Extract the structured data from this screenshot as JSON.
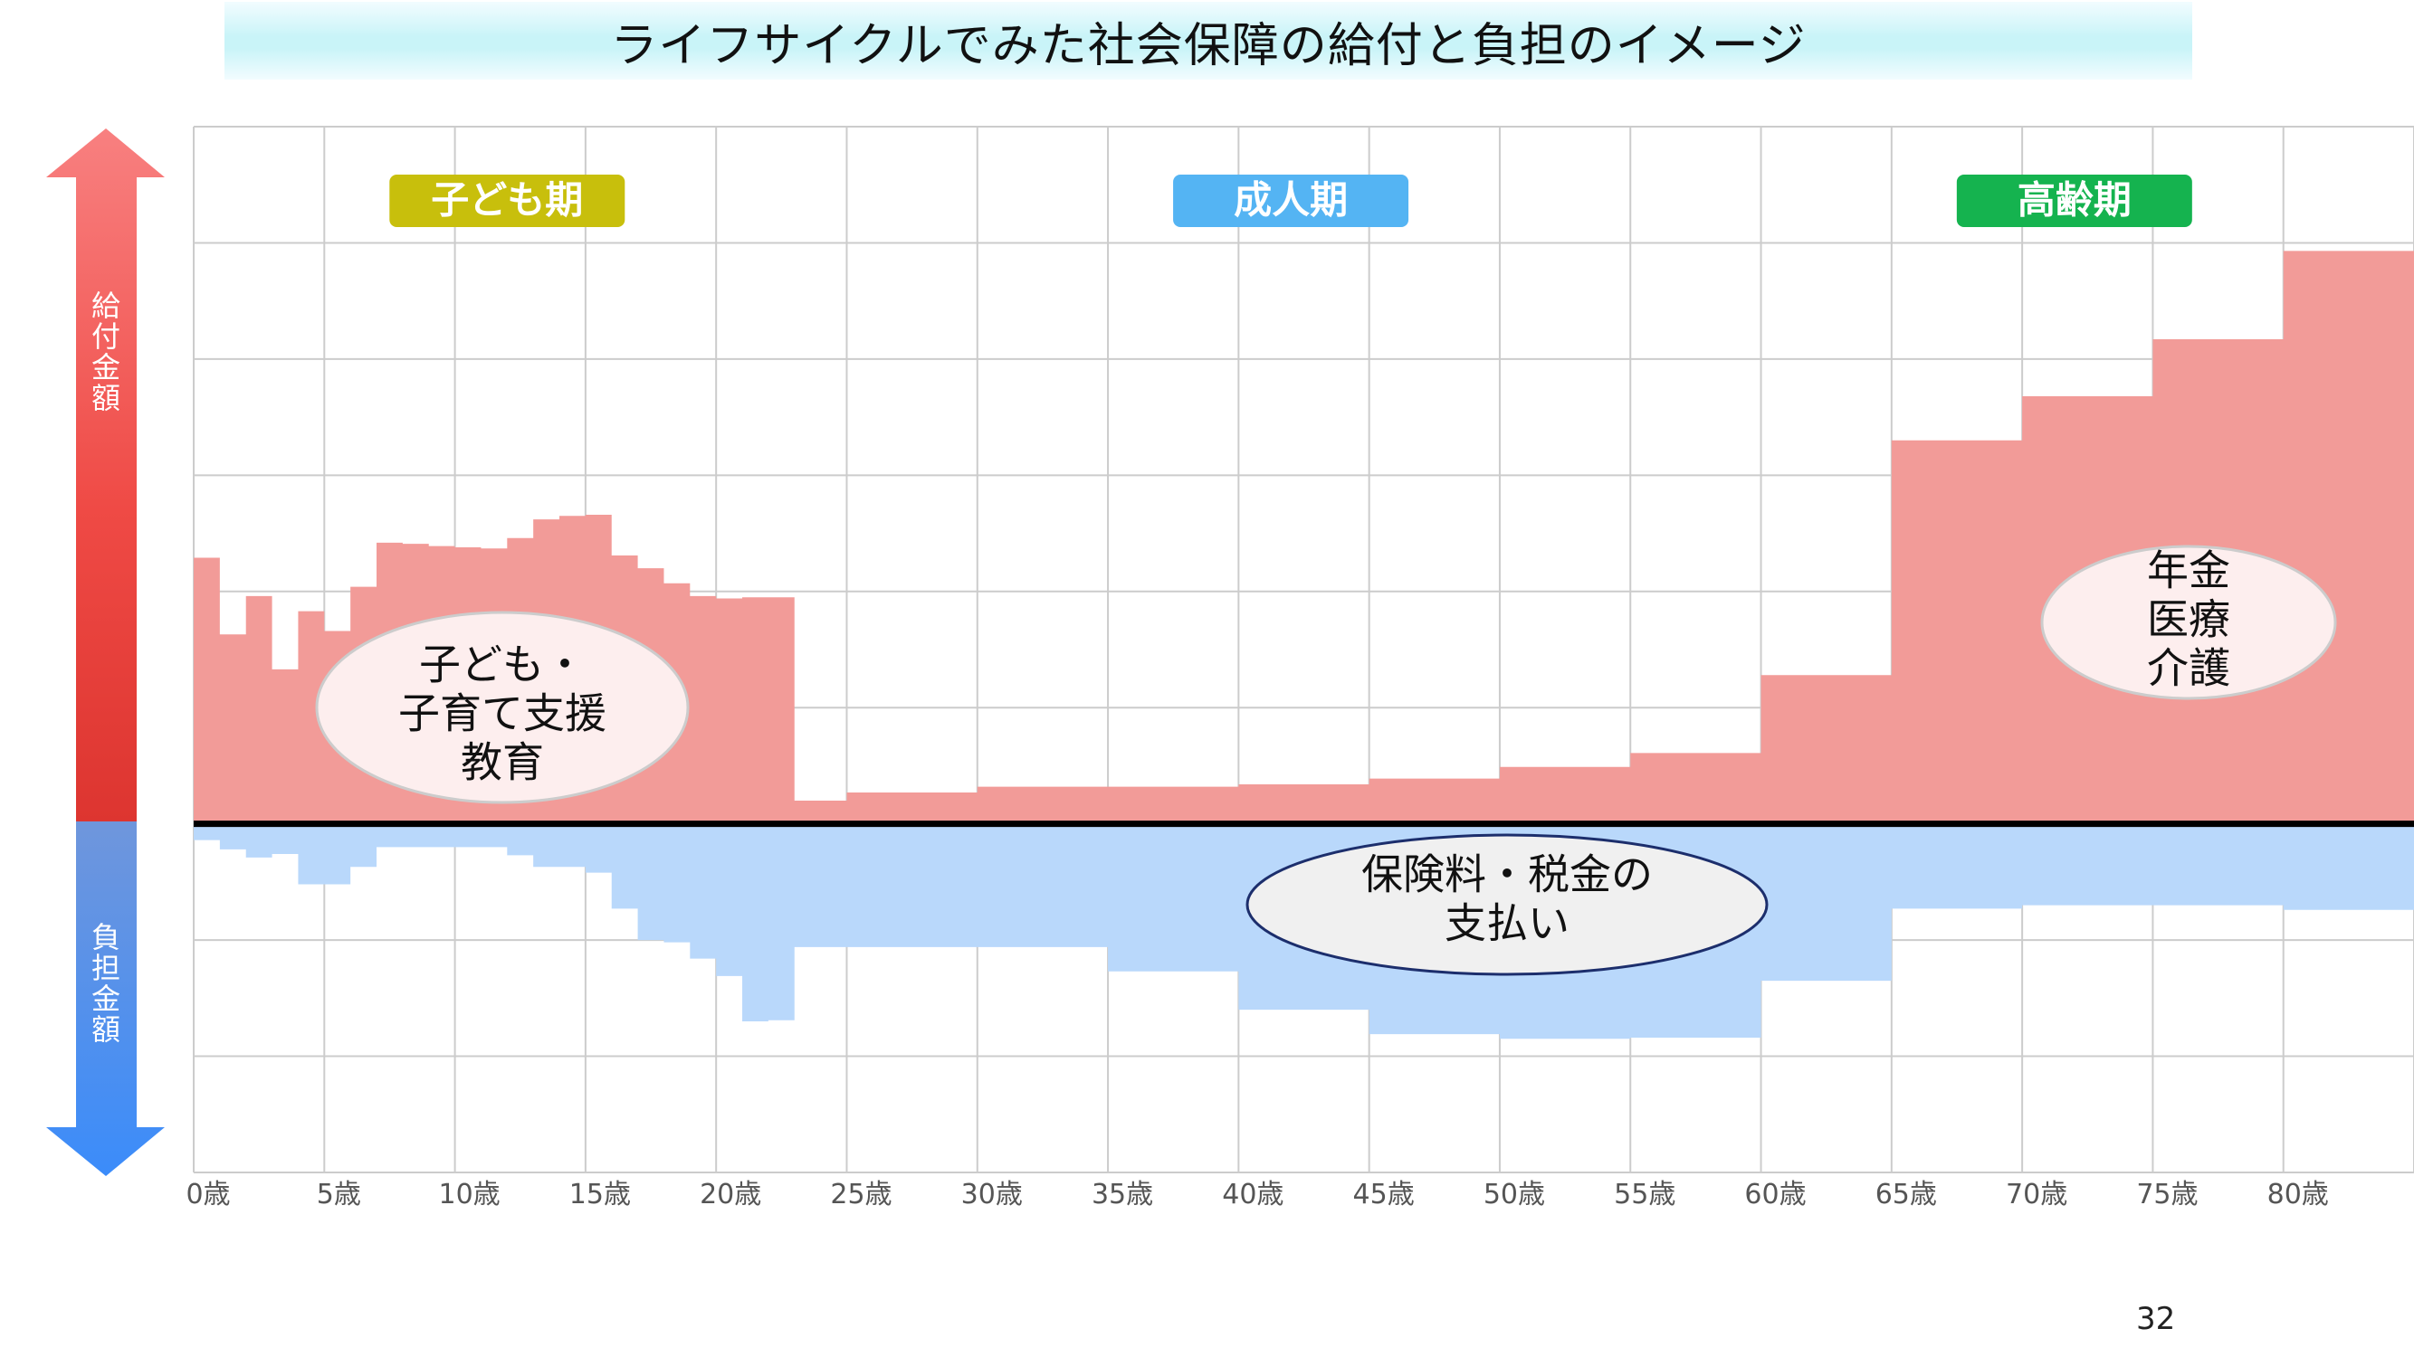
{
  "title": "ライフサイクルでみた社会保障の給付と負担のイメージ",
  "page_number": "32",
  "axis": {
    "benefit_label": [
      "給",
      "付",
      "金",
      "額"
    ],
    "burden_label": [
      "負",
      "担",
      "金",
      "額"
    ]
  },
  "periods": [
    {
      "label": "子ども期",
      "color": "#c8bf0c",
      "age_center": 12
    },
    {
      "label": "成人期",
      "color": "#54b4f3",
      "age_center": 42
    },
    {
      "label": "高齢期",
      "color": "#15b34f",
      "age_center": 72
    }
  ],
  "bubbles": {
    "children": {
      "lines": [
        "子ども・",
        "子育て支援",
        "教育"
      ]
    },
    "elderly": {
      "lines": [
        "年金",
        "医療",
        "介護"
      ]
    },
    "burden": {
      "lines": [
        "保険料・税金の",
        "支払い"
      ]
    }
  },
  "colors": {
    "benefit_fill": "#f29b98",
    "burden_fill": "#b9d8fb",
    "grid": "#cccccc",
    "axis_line": "#000000",
    "arrow_top": "#f77777",
    "arrow_mid": "#e8403b",
    "arrow_bottom_top": "#6d9de6",
    "arrow_bottom": "#3a85f2"
  },
  "chart_data": {
    "type": "area",
    "x_tick_labels": [
      "0歳",
      "5歳",
      "10歳",
      "15歳",
      "20歳",
      "25歳",
      "30歳",
      "35歳",
      "40歳",
      "45歳",
      "50歳",
      "55歳",
      "60歳",
      "65歳",
      "70歳",
      "75歳",
      "80歳"
    ],
    "xlim": [
      0,
      85
    ],
    "ylim": [
      -3,
      6
    ],
    "series": [
      {
        "name": "給付",
        "steps": [
          [
            0,
            2.29
          ],
          [
            1,
            1.63
          ],
          [
            2,
            1.96
          ],
          [
            3,
            1.33
          ],
          [
            4,
            1.83
          ],
          [
            5,
            1.66
          ],
          [
            6,
            2.04
          ],
          [
            7,
            2.42
          ],
          [
            8,
            2.41
          ],
          [
            9,
            2.39
          ],
          [
            10,
            2.38
          ],
          [
            11,
            2.37
          ],
          [
            12,
            2.46
          ],
          [
            13,
            2.62
          ],
          [
            14,
            2.65
          ],
          [
            15,
            2.66
          ],
          [
            16,
            2.31
          ],
          [
            17,
            2.2
          ],
          [
            18,
            2.07
          ],
          [
            19,
            1.96
          ],
          [
            20,
            1.94
          ],
          [
            21,
            1.95
          ],
          [
            22,
            1.95
          ],
          [
            23,
            0.2
          ],
          [
            25,
            0.27
          ],
          [
            30,
            0.32
          ],
          [
            40,
            0.34
          ],
          [
            45,
            0.39
          ],
          [
            50,
            0.49
          ],
          [
            55,
            0.61
          ],
          [
            60,
            1.28
          ],
          [
            65,
            3.3
          ],
          [
            70,
            3.68
          ],
          [
            75,
            4.17
          ],
          [
            80,
            4.93
          ],
          [
            85,
            4.93
          ]
        ]
      },
      {
        "name": "負担",
        "steps": [
          [
            0,
            -0.14
          ],
          [
            1,
            -0.22
          ],
          [
            2,
            -0.29
          ],
          [
            3,
            -0.26
          ],
          [
            4,
            -0.52
          ],
          [
            6,
            -0.37
          ],
          [
            7,
            -0.2
          ],
          [
            8,
            -0.2
          ],
          [
            11,
            -0.2
          ],
          [
            12,
            -0.27
          ],
          [
            13,
            -0.37
          ],
          [
            15,
            -0.42
          ],
          [
            16,
            -0.73
          ],
          [
            17,
            -1.0
          ],
          [
            18,
            -1.02
          ],
          [
            19,
            -1.16
          ],
          [
            20,
            -1.31
          ],
          [
            21,
            -1.7
          ],
          [
            22,
            -1.69
          ],
          [
            23,
            -1.06
          ],
          [
            30,
            -1.06
          ],
          [
            35,
            -1.27
          ],
          [
            40,
            -1.6
          ],
          [
            45,
            -1.81
          ],
          [
            50,
            -1.85
          ],
          [
            55,
            -1.84
          ],
          [
            60,
            -1.35
          ],
          [
            65,
            -0.73
          ],
          [
            70,
            -0.7
          ],
          [
            75,
            -0.7
          ],
          [
            80,
            -0.74
          ],
          [
            85,
            -0.74
          ]
        ]
      }
    ],
    "grid": true
  }
}
